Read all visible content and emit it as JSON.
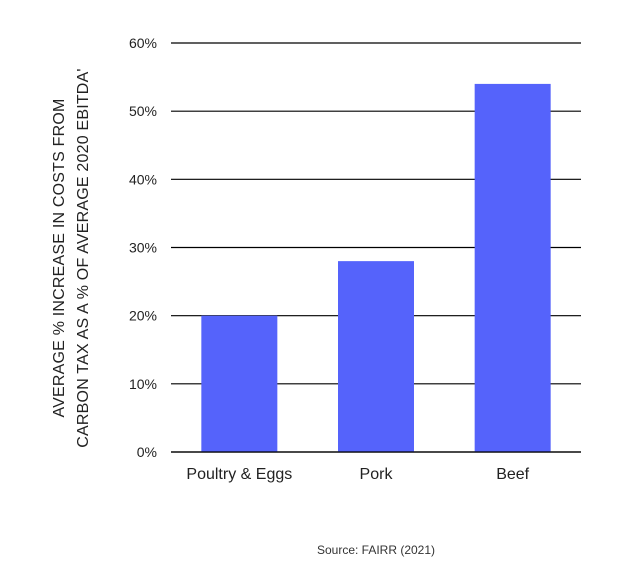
{
  "chart_data": {
    "type": "bar",
    "categories": [
      "Poultry & Eggs",
      "Pork",
      "Beef"
    ],
    "values": [
      20,
      28,
      54
    ],
    "value_unit": "%",
    "ylim": [
      0,
      60
    ],
    "yticks": [
      0,
      10,
      20,
      30,
      40,
      50,
      60
    ],
    "ytick_labels": [
      "0%",
      "10%",
      "20%",
      "30%",
      "40%",
      "50%",
      "60%"
    ],
    "ylabel_lines": [
      "AVERAGE % INCREASE IN COSTS FROM",
      "CARBON TAX AS A % OF AVERAGE 2020 EBITDA'"
    ],
    "xlabel": "",
    "grid": true,
    "bar_color": "#5563fb",
    "grid_color": "#000000"
  },
  "source": "Source: FAIRR (2021)"
}
